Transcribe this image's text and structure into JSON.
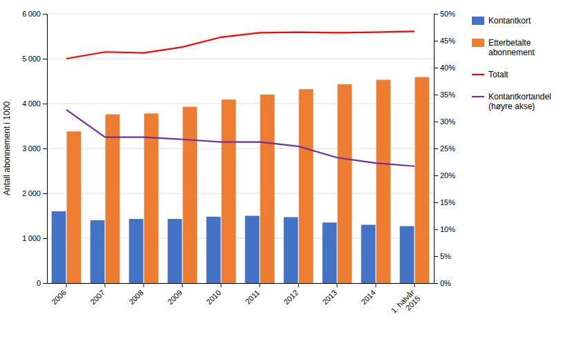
{
  "chart_data": {
    "type": "bar",
    "categories": [
      "2006",
      "2007",
      "2008",
      "2009",
      "2010",
      "2011",
      "2012",
      "2013",
      "2014",
      "1. halvår\n2015"
    ],
    "series": [
      {
        "name": "Kontantkort",
        "type": "bar",
        "color": "#4472C4",
        "values": [
          1600,
          1400,
          1430,
          1430,
          1480,
          1500,
          1470,
          1350,
          1300,
          1270
        ]
      },
      {
        "name": "Etterbetalte\nabonnement",
        "type": "bar",
        "color": "#ED7D31",
        "values": [
          3380,
          3760,
          3780,
          3930,
          4090,
          4200,
          4320,
          4430,
          4530,
          4590
        ]
      },
      {
        "name": "Totalt",
        "type": "line",
        "color": "#FF0000",
        "values": [
          5000,
          5150,
          5130,
          5260,
          5480,
          5580,
          5590,
          5580,
          5590,
          5610
        ]
      },
      {
        "name": "Kontantkortandel\n(høyre akse)",
        "type": "line",
        "color": "#7030A0",
        "axis": "y2",
        "values": [
          0.322,
          0.271,
          0.271,
          0.267,
          0.262,
          0.262,
          0.254,
          0.233,
          0.223,
          0.217
        ]
      }
    ],
    "ylabel": "Antall abonnement i 1000",
    "ylim": [
      0,
      6000
    ],
    "yticks": [
      0,
      {
        "value": 1000,
        "label": "1 000"
      },
      {
        "value": 2000,
        "label": "2 000"
      },
      {
        "value": 3000,
        "label": "3 000"
      },
      {
        "value": 4000,
        "label": "4 000"
      },
      {
        "value": 5000,
        "label": "5 000"
      },
      {
        "value": 6000,
        "label": "6 000"
      }
    ],
    "y2lim": [
      0,
      0.5
    ],
    "y2ticks": [
      {
        "value": 0.0,
        "label": "0%"
      },
      {
        "value": 0.05,
        "label": "5%"
      },
      {
        "value": 0.1,
        "label": "10%"
      },
      {
        "value": 0.15,
        "label": "15%"
      },
      {
        "value": 0.2,
        "label": "20%"
      },
      {
        "value": 0.25,
        "label": "25%"
      },
      {
        "value": 0.3,
        "label": "30%"
      },
      {
        "value": 0.35,
        "label": "35%"
      },
      {
        "value": 0.4,
        "label": "40%"
      },
      {
        "value": 0.45,
        "label": "45%"
      },
      {
        "value": 0.5,
        "label": "50%"
      }
    ],
    "grid": true,
    "legend": "right"
  }
}
